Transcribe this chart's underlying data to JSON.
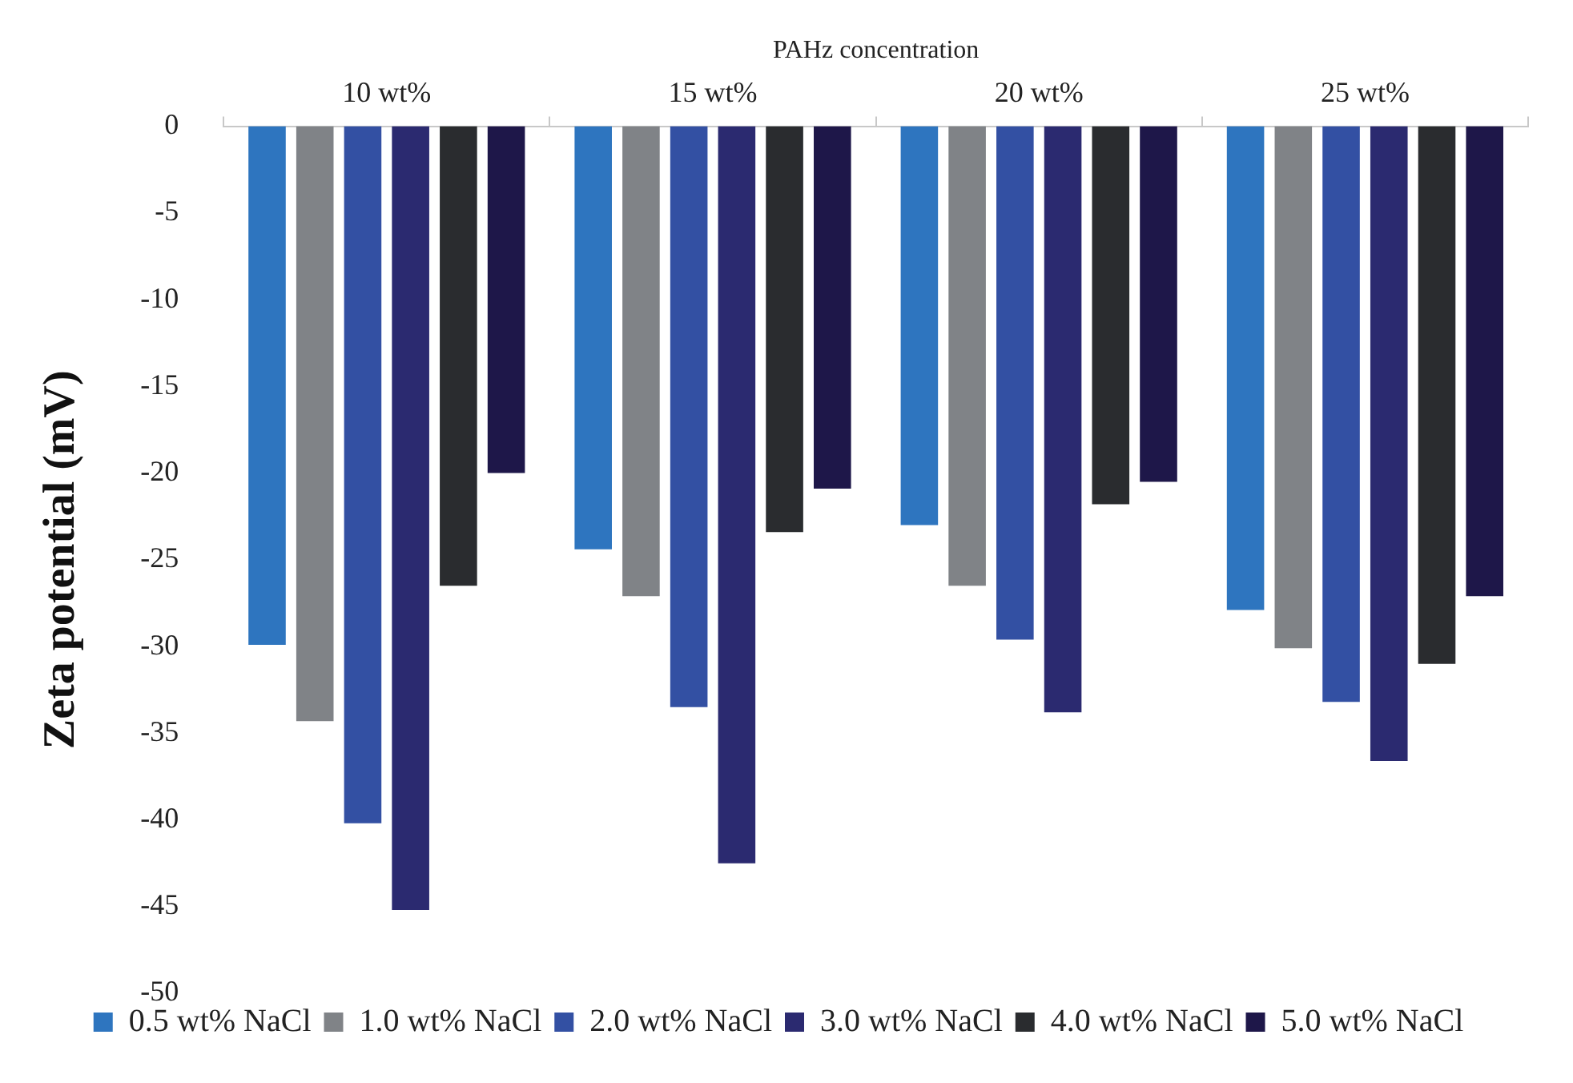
{
  "chart_data": {
    "type": "bar",
    "xlabel": "PAHz concentration",
    "ylabel": "Zeta potential (mV)",
    "categories": [
      "10 wt%",
      "15 wt%",
      "20 wt%",
      "25 wt%"
    ],
    "series": [
      {
        "name": "0.5 wt% NaCl",
        "color": "#2e75bf",
        "values": [
          -29.9,
          -24.4,
          -23.0,
          -27.9
        ]
      },
      {
        "name": "1.0 wt% NaCl",
        "color": "#808387",
        "values": [
          -34.3,
          -27.1,
          -26.5,
          -30.1
        ]
      },
      {
        "name": "2.0 wt% NaCl",
        "color": "#3350a3",
        "values": [
          -40.2,
          -33.5,
          -29.6,
          -33.2
        ]
      },
      {
        "name": "3.0 wt% NaCl",
        "color": "#2b2a70",
        "values": [
          -45.2,
          -42.5,
          -33.8,
          -36.6
        ]
      },
      {
        "name": "4.0 wt% NaCl",
        "color": "#2a2c2f",
        "values": [
          -26.5,
          -23.4,
          -21.8,
          -31.0
        ]
      },
      {
        "name": "5.0 wt% NaCl",
        "color": "#1e1749",
        "values": [
          -20.0,
          -20.9,
          -20.5,
          -27.1
        ]
      }
    ],
    "ylim": [
      -50,
      0
    ],
    "yticks": [
      0,
      -5,
      -10,
      -15,
      -20,
      -25,
      -30,
      -35,
      -40,
      -45,
      -50
    ],
    "grid": false,
    "legend": "bottom"
  }
}
